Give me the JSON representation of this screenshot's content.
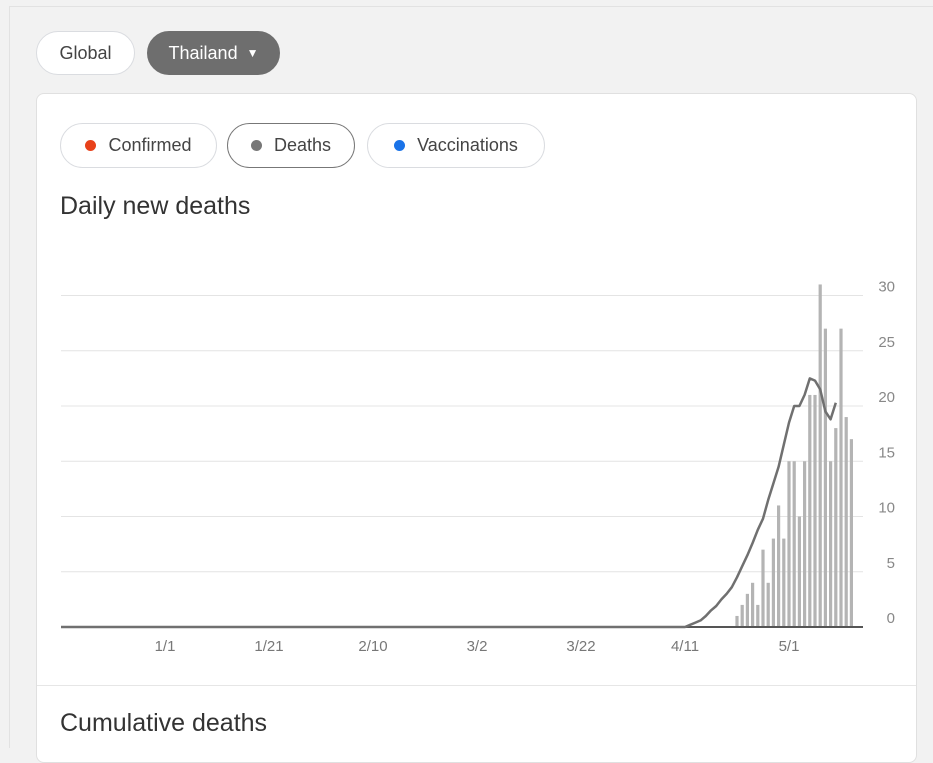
{
  "location_tabs": {
    "global_label": "Global",
    "selected_label": "Thailand",
    "caret": "▼"
  },
  "metrics": [
    {
      "label": "Confirmed",
      "color": "#e8411a",
      "active": false
    },
    {
      "label": "Deaths",
      "color": "#777777",
      "active": true
    },
    {
      "label": "Vaccinations",
      "color": "#1a73e8",
      "active": false
    }
  ],
  "chart_title": "Daily new deaths",
  "cumulative_title": "Cumulative deaths",
  "colors": {
    "bar": "#b4b4b4",
    "line": "#707070",
    "grid": "#e4e4e4",
    "baseline": "#555555"
  },
  "chart_data": {
    "type": "bar",
    "title": "Daily new deaths",
    "y_ticks": [
      "0",
      "5",
      "10",
      "15",
      "20",
      "25",
      "30"
    ],
    "ylim": [
      0,
      30
    ],
    "x_ticks": [
      "1/1",
      "1/21",
      "2/10",
      "3/2",
      "3/22",
      "4/11",
      "5/1"
    ],
    "x_start": "12/12",
    "grid": true,
    "bars": {
      "dates": [
        "4/21",
        "4/22",
        "4/23",
        "4/24",
        "4/25",
        "4/26",
        "4/27",
        "4/28",
        "4/29",
        "4/30",
        "5/1",
        "5/2",
        "5/3",
        "5/4",
        "5/5",
        "5/6",
        "5/7",
        "5/8",
        "5/9",
        "5/10",
        "5/11",
        "5/12",
        "5/13",
        "5/14",
        "5/15",
        "5/16"
      ],
      "values": [
        1,
        2,
        3,
        4,
        2,
        7,
        4,
        8,
        11,
        8,
        15,
        15,
        10,
        15,
        21,
        21,
        31,
        27,
        15,
        18,
        27,
        19,
        17,
        0,
        0,
        0
      ]
    },
    "moving_average": {
      "dates": [
        "4/11",
        "4/12",
        "4/13",
        "4/14",
        "4/15",
        "4/16",
        "4/17",
        "4/18",
        "4/19",
        "4/20",
        "4/21",
        "4/22",
        "4/23",
        "4/24",
        "4/25",
        "4/26",
        "4/27",
        "4/28",
        "4/29",
        "4/30",
        "5/1",
        "5/2",
        "5/3",
        "5/4",
        "5/5",
        "5/6",
        "5/7",
        "5/8",
        "5/9",
        "5/10",
        "5/11",
        "5/12",
        "5/13"
      ],
      "values": [
        0,
        0.2,
        0.4,
        0.6,
        1.0,
        1.5,
        1.9,
        2.5,
        3.0,
        3.6,
        4.5,
        5.5,
        6.5,
        7.6,
        8.8,
        9.8,
        11.5,
        13.0,
        14.5,
        16.5,
        18.5,
        20.0,
        20.0,
        21.0,
        22.5,
        22.3,
        21.5,
        19.5,
        18.8,
        20.3,
        20.3,
        20.3,
        20.3
      ]
    }
  }
}
